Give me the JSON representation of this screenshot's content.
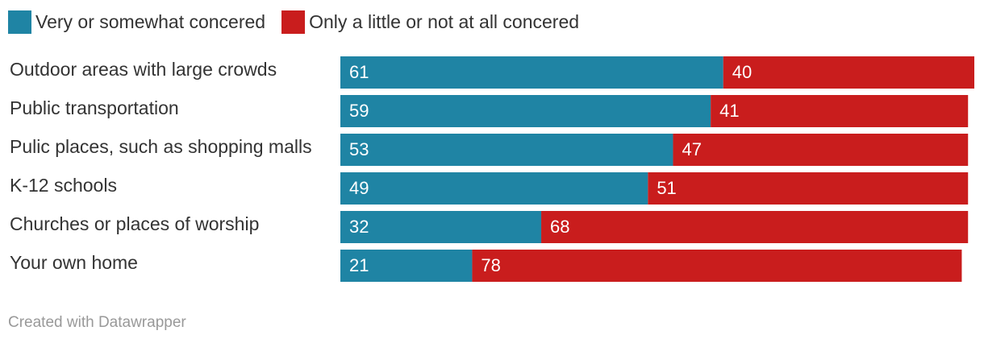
{
  "chart_data": {
    "type": "bar",
    "orientation": "horizontal",
    "stacked": true,
    "categories": [
      "Outdoor areas with large crowds",
      "Public transportation",
      "Pulic places, such as shopping malls",
      "K-12 schools",
      "Churches or places of worship",
      "Your own home"
    ],
    "series": [
      {
        "name": "Very or somewhat concered",
        "color": "#1f84a4",
        "values": [
          61,
          59,
          53,
          49,
          32,
          21
        ]
      },
      {
        "name": "Only a little or not at all concered",
        "color": "#c91d1d",
        "values": [
          40,
          41,
          47,
          51,
          68,
          78
        ]
      }
    ],
    "xlim": [
      0,
      101
    ],
    "grid": false,
    "legend_position": "top-left"
  },
  "credit": "Created with Datawrapper"
}
